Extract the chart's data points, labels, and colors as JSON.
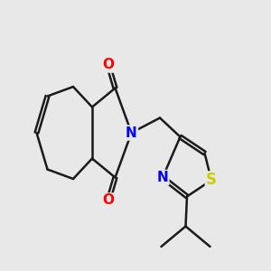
{
  "bg_color": "#e8e8e8",
  "bond_color": "#1a1a1a",
  "bond_width": 1.8,
  "atom_colors": {
    "O": "#ff0000",
    "N": "#0000ff",
    "S": "#cccc00",
    "C": "#1a1a1a"
  },
  "font_size_atom": 11,
  "fig_width": 3.0,
  "fig_height": 3.0,
  "xlim": [
    0,
    10
  ],
  "ylim": [
    0,
    10
  ]
}
